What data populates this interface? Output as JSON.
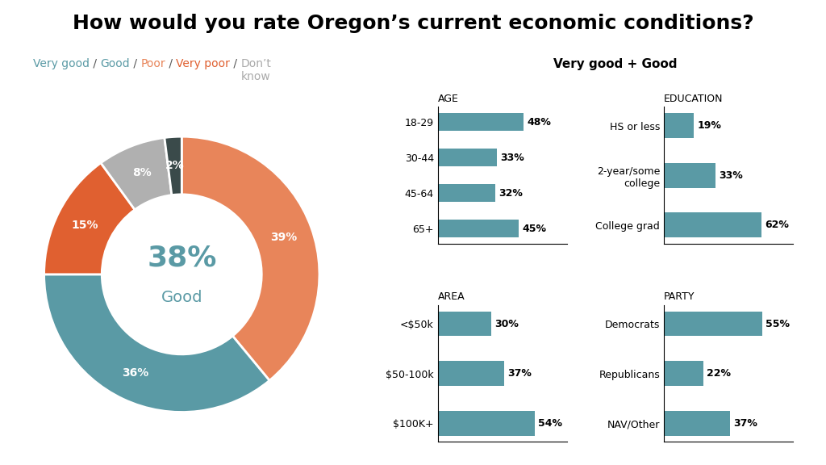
{
  "title": "How would you rate Oregon’s current economic conditions?",
  "subtitle": "Very good + Good",
  "chart_data": [
    {
      "type": "pie",
      "subtitle": [
        {
          "text": "Very good",
          "color": "#5a9aa5"
        },
        {
          "text": " / ",
          "color": "#555555"
        },
        {
          "text": "Good",
          "color": "#5a9aa5"
        },
        {
          "text": " / ",
          "color": "#555555"
        },
        {
          "text": "Poor",
          "color": "#e8855a"
        },
        {
          "text": " / ",
          "color": "#555555"
        },
        {
          "text": "Very poor",
          "color": "#e06030"
        },
        {
          "text": " / ",
          "color": "#555555"
        },
        {
          "text": "Don’t\nknow",
          "color": "#aaaaaa"
        }
      ],
      "values": [
        39,
        36,
        15,
        8,
        2
      ],
      "value_labels": [
        "39%",
        "36%",
        "15%",
        "8%",
        "2%"
      ],
      "colors": [
        "#e8855a",
        "#5a9aa5",
        "#e06030",
        "#b0b0b0",
        "#3a4a4a"
      ],
      "data_labels": true,
      "annotations": [
        {
          "text": "38%",
          "color": "#5a9aa5"
        },
        {
          "text": "Good",
          "color": "#5a9aa5"
        }
      ]
    },
    {
      "type": "bar",
      "orientation": "horizontal",
      "title": "AGE",
      "categories": [
        "18-29",
        "30-44",
        "45-64",
        "65+"
      ],
      "values": [
        48,
        33,
        32,
        45
      ],
      "value_labels": [
        "48%",
        "33%",
        "32%",
        "45%"
      ],
      "color": "#5a9aa5",
      "xlim": [
        0,
        72
      ],
      "xticks": [],
      "tick_labels": "y",
      "data_labels": true
    },
    {
      "type": "bar",
      "orientation": "horizontal",
      "title": "AREA",
      "categories": [
        "<$50k",
        "$50-100k",
        "$100K+"
      ],
      "values": [
        30,
        37,
        54
      ],
      "value_labels": [
        "30%",
        "37%",
        "54%"
      ],
      "color": "#5a9aa5",
      "xlim": [
        0,
        72
      ],
      "xticks": [],
      "tick_labels": "y",
      "data_labels": true
    },
    {
      "type": "bar",
      "orientation": "horizontal",
      "title": "EDUCATION",
      "categories": [
        "HS or less",
        "2-year/some\ncollege",
        "College grad"
      ],
      "values": [
        19,
        33,
        62
      ],
      "value_labels": [
        "19%",
        "33%",
        "62%"
      ],
      "color": "#5a9aa5",
      "xlim": [
        0,
        82
      ],
      "xticks": [],
      "tick_labels": "y",
      "data_labels": true
    },
    {
      "type": "bar",
      "orientation": "horizontal",
      "title": "PARTY",
      "categories": [
        "Democrats",
        "Republicans",
        "NAV/Other"
      ],
      "values": [
        55,
        22,
        37
      ],
      "value_labels": [
        "55%",
        "22%",
        "37%"
      ],
      "color": "#5a9aa5",
      "xlim": [
        0,
        72
      ],
      "xticks": [],
      "tick_labels": "y",
      "data_labels": true
    }
  ]
}
